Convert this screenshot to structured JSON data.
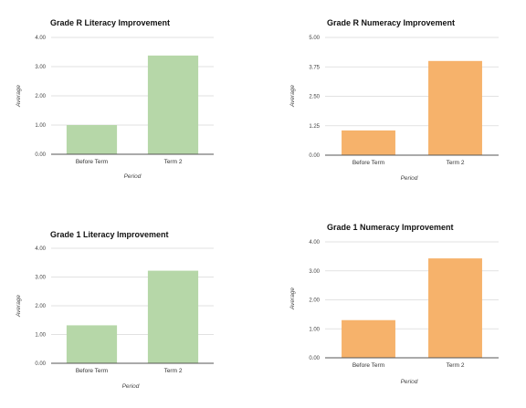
{
  "chart_data": [
    {
      "type": "bar",
      "title": "Grade R Literacy Improvement",
      "xlabel": "Period",
      "ylabel": "Average",
      "categories": [
        "Before Term",
        "Term 2"
      ],
      "values": [
        1.0,
        3.38
      ],
      "ylim": [
        0,
        4
      ],
      "yticks": [
        "0.00",
        "1.00",
        "2.00",
        "3.00",
        "4.00"
      ],
      "grid": true,
      "color": "#b6d7a8"
    },
    {
      "type": "bar",
      "title": "Grade R Numeracy Improvement",
      "xlabel": "Period",
      "ylabel": "Average",
      "categories": [
        "Before Term",
        "Term 2"
      ],
      "values": [
        1.05,
        4.0
      ],
      "ylim": [
        0,
        5
      ],
      "yticks": [
        "0.00",
        "1.25",
        "2.50",
        "3.75",
        "5.00"
      ],
      "grid": true,
      "color": "#f6b26b"
    },
    {
      "type": "bar",
      "title": "Grade 1 Literacy Improvement",
      "xlabel": "Period",
      "ylabel": "Average",
      "categories": [
        "Before Term",
        "Term 2"
      ],
      "values": [
        1.32,
        3.22
      ],
      "ylim": [
        0,
        4
      ],
      "yticks": [
        "0.00",
        "1.00",
        "2.00",
        "3.00",
        "4.00"
      ],
      "grid": true,
      "color": "#b6d7a8"
    },
    {
      "type": "bar",
      "title": "Grade 1 Numeracy Improvement",
      "xlabel": "Period",
      "ylabel": "Average",
      "categories": [
        "Before Term",
        "Term 2"
      ],
      "values": [
        1.3,
        3.43
      ],
      "ylim": [
        0,
        4
      ],
      "yticks": [
        "0.00",
        "1.00",
        "2.00",
        "3.00",
        "4.00"
      ],
      "grid": true,
      "color": "#f6b26b"
    }
  ]
}
